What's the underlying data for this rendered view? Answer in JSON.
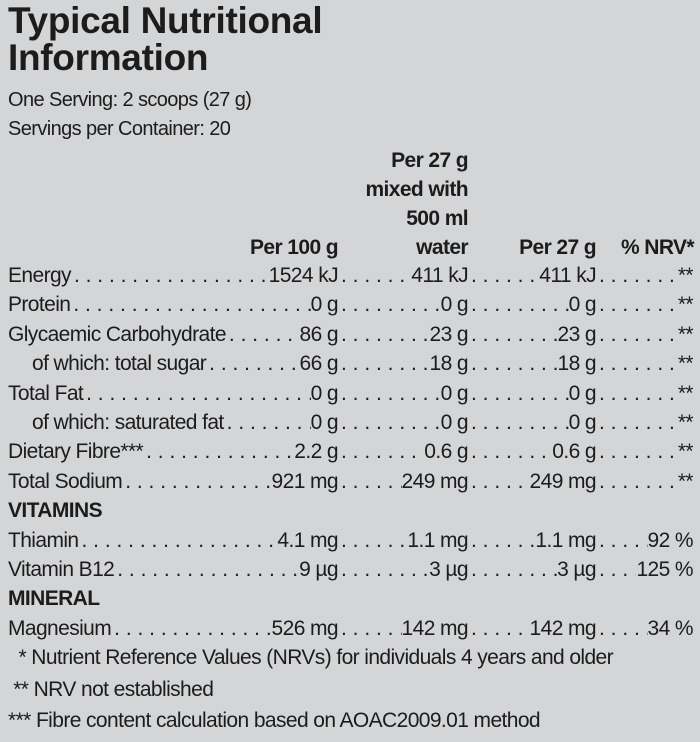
{
  "title_line1": "Typical Nutritional",
  "title_line2": "Information",
  "serving": "One Serving: 2 scoops (27 g)",
  "servings_per_container": "Servings per Container: 20",
  "headers": {
    "per100": "Per 100 g",
    "mixed": [
      "Per 27 g",
      "mixed with",
      "500 ml",
      "water"
    ],
    "per27": "Per 27 g",
    "nrv": "% NRV*"
  },
  "rows": [
    {
      "label": "Energy",
      "per100": "1524 kJ",
      "mixed": "411 kJ",
      "per27": "411 kJ",
      "nrv": "**"
    },
    {
      "label": "Protein",
      "per100": "0 g",
      "mixed": "0 g",
      "per27": "0 g",
      "nrv": "**"
    },
    {
      "label": "Glycaemic Carbohydrate",
      "per100": "86 g",
      "mixed": "23 g",
      "per27": "23 g",
      "nrv": "**"
    },
    {
      "label": "of which: total sugar",
      "per100": "66 g",
      "mixed": "18 g",
      "per27": "18 g",
      "nrv": "**"
    },
    {
      "label": "Total Fat",
      "per100": "0 g",
      "mixed": "0 g",
      "per27": "0 g",
      "nrv": "**"
    },
    {
      "label": "of which: saturated fat",
      "per100": "0 g",
      "mixed": "0 g",
      "per27": "0 g",
      "nrv": "**"
    },
    {
      "label": "Dietary Fibre***",
      "per100": "2.2 g",
      "mixed": "0.6 g",
      "per27": "0.6 g",
      "nrv": "**"
    },
    {
      "label": "Total Sodium",
      "per100": "921 mg",
      "mixed": "249 mg",
      "per27": "249 mg",
      "nrv": "**"
    }
  ],
  "vitamins_heading": "VITAMINS",
  "vitamins": [
    {
      "label": "Thiamin",
      "per100": "4.1 mg",
      "mixed": "1.1 mg",
      "per27": "1.1 mg",
      "nrv": "92 %"
    },
    {
      "label": "Vitamin B12",
      "per100": "9 µg",
      "mixed": "3 µg",
      "per27": "3 µg",
      "nrv": "125 %"
    }
  ],
  "mineral_heading": "MINERAL",
  "minerals": [
    {
      "label": "Magnesium",
      "per100": "526 mg",
      "mixed": "142 mg",
      "per27": "142 mg",
      "nrv": "34 %"
    }
  ],
  "footnotes": [
    "  * Nutrient Reference Values (NRVs) for individuals 4 years and older",
    " ** NRV not established",
    "*** Fibre content calculation based on AOAC2009.01 method"
  ]
}
